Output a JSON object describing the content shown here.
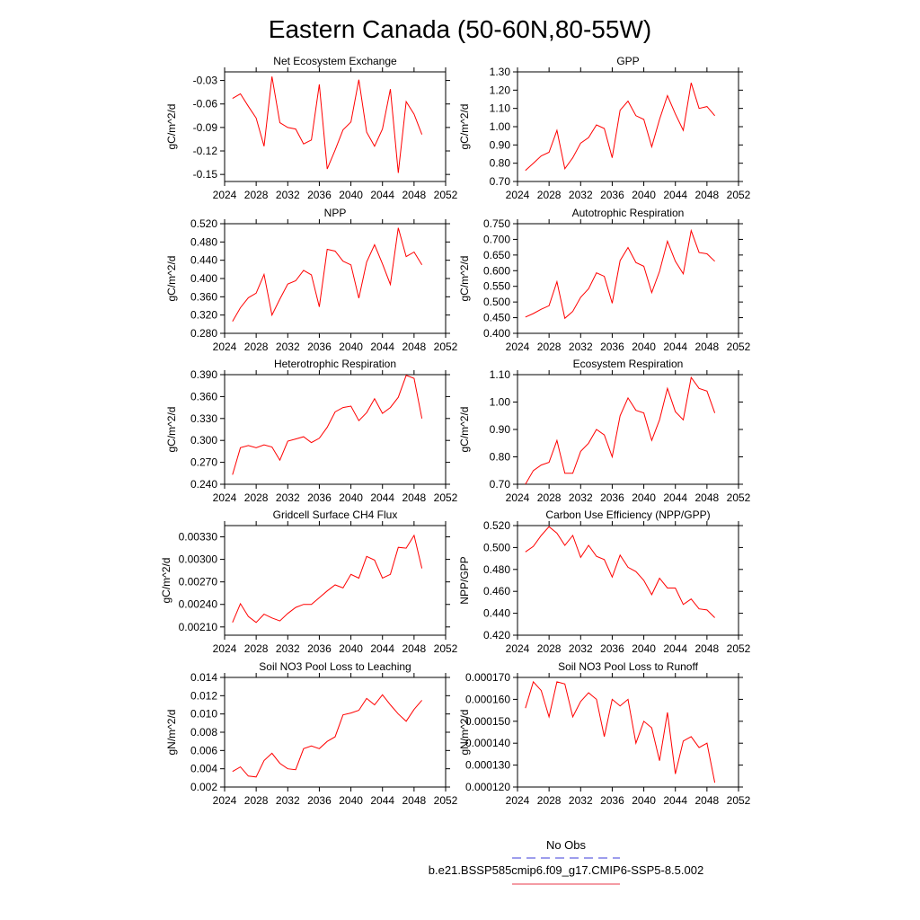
{
  "figure": {
    "title": "Eastern Canada (50-60N,80-55W)",
    "legend": {
      "obs_label": "No Obs",
      "obs_color": "#3b3bd9",
      "model_label": "b.e21.BSSP585cmip6.f09_g17.CMIP6-SSP5-8.5.002",
      "model_color": "#e8394a"
    }
  },
  "chart_data": [
    {
      "type": "line",
      "title": "Net Ecosystem Exchange",
      "ylabel": "gC/m^2/d",
      "xlim": [
        2024,
        2052
      ],
      "xticks": [
        2024,
        2028,
        2032,
        2036,
        2040,
        2044,
        2048,
        2052
      ],
      "xtick_labels": [
        "2024",
        "2028",
        "2032",
        "2036",
        "2040",
        "2044",
        "2048",
        "2052"
      ],
      "ylim": [
        -0.159,
        -0.019
      ],
      "yticks": [
        -0.15,
        -0.12,
        -0.09,
        -0.06,
        -0.03
      ],
      "ytick_labels": [
        "-0.15",
        "-0.12",
        "-0.09",
        "-0.06",
        "-0.03"
      ],
      "line_color": "#ff0000",
      "series": [
        {
          "x": [
            2025,
            2026,
            2027,
            2028,
            2029,
            2030,
            2031,
            2032,
            2033,
            2034,
            2035,
            2036,
            2037,
            2038,
            2039,
            2040,
            2041,
            2042,
            2043,
            2044,
            2045,
            2046,
            2047,
            2048,
            2049
          ],
          "y": [
            -0.053,
            -0.047,
            -0.063,
            -0.078,
            -0.114,
            -0.025,
            -0.084,
            -0.09,
            -0.092,
            -0.111,
            -0.106,
            -0.035,
            -0.143,
            -0.119,
            -0.093,
            -0.083,
            -0.029,
            -0.096,
            -0.114,
            -0.092,
            -0.041,
            -0.148,
            -0.057,
            -0.073,
            -0.099
          ]
        }
      ]
    },
    {
      "type": "line",
      "title": "GPP",
      "ylabel": "gC/m^2/d",
      "xlim": [
        2024,
        2052
      ],
      "xticks": [
        2024,
        2028,
        2032,
        2036,
        2040,
        2044,
        2048,
        2052
      ],
      "xtick_labels": [
        "2024",
        "2028",
        "2032",
        "2036",
        "2040",
        "2044",
        "2048",
        "2052"
      ],
      "ylim": [
        0.7,
        1.3
      ],
      "yticks": [
        0.7,
        0.8,
        0.9,
        1.0,
        1.1,
        1.2,
        1.3
      ],
      "ytick_labels": [
        "0.70",
        "0.80",
        "0.90",
        "1.00",
        "1.10",
        "1.20",
        "1.30"
      ],
      "line_color": "#ff0000",
      "series": [
        {
          "x": [
            2025,
            2026,
            2027,
            2028,
            2029,
            2030,
            2031,
            2032,
            2033,
            2034,
            2035,
            2036,
            2037,
            2038,
            2039,
            2040,
            2041,
            2042,
            2043,
            2044,
            2045,
            2046,
            2047,
            2048,
            2049
          ],
          "y": [
            0.76,
            0.8,
            0.84,
            0.86,
            0.98,
            0.77,
            0.83,
            0.91,
            0.94,
            1.01,
            0.99,
            0.83,
            1.09,
            1.14,
            1.06,
            1.04,
            0.89,
            1.04,
            1.17,
            1.07,
            0.98,
            1.24,
            1.1,
            1.11,
            1.06
          ]
        }
      ]
    },
    {
      "type": "line",
      "title": "NPP",
      "ylabel": "gC/m^2/d",
      "xlim": [
        2024,
        2052
      ],
      "xticks": [
        2024,
        2028,
        2032,
        2036,
        2040,
        2044,
        2048,
        2052
      ],
      "xtick_labels": [
        "2024",
        "2028",
        "2032",
        "2036",
        "2040",
        "2044",
        "2048",
        "2052"
      ],
      "ylim": [
        0.28,
        0.52
      ],
      "yticks": [
        0.28,
        0.32,
        0.36,
        0.4,
        0.44,
        0.48,
        0.52
      ],
      "ytick_labels": [
        "0.280",
        "0.320",
        "0.360",
        "0.400",
        "0.440",
        "0.480",
        "0.520"
      ],
      "line_color": "#ff0000",
      "series": [
        {
          "x": [
            2025,
            2026,
            2027,
            2028,
            2029,
            2030,
            2031,
            2032,
            2033,
            2034,
            2035,
            2036,
            2037,
            2038,
            2039,
            2040,
            2041,
            2042,
            2043,
            2044,
            2045,
            2046,
            2047,
            2048,
            2049
          ],
          "y": [
            0.306,
            0.336,
            0.358,
            0.368,
            0.409,
            0.32,
            0.355,
            0.388,
            0.395,
            0.418,
            0.408,
            0.338,
            0.464,
            0.46,
            0.438,
            0.43,
            0.357,
            0.436,
            0.474,
            0.432,
            0.387,
            0.511,
            0.448,
            0.458,
            0.43
          ]
        }
      ]
    },
    {
      "type": "line",
      "title": "Autotrophic Respiration",
      "ylabel": "gC/m^2/d",
      "xlim": [
        2024,
        2052
      ],
      "xticks": [
        2024,
        2028,
        2032,
        2036,
        2040,
        2044,
        2048,
        2052
      ],
      "xtick_labels": [
        "2024",
        "2028",
        "2032",
        "2036",
        "2040",
        "2044",
        "2048",
        "2052"
      ],
      "ylim": [
        0.4,
        0.75
      ],
      "yticks": [
        0.4,
        0.45,
        0.5,
        0.55,
        0.6,
        0.65,
        0.7,
        0.75
      ],
      "ytick_labels": [
        "0.400",
        "0.450",
        "0.500",
        "0.550",
        "0.600",
        "0.650",
        "0.700",
        "0.750"
      ],
      "line_color": "#ff0000",
      "series": [
        {
          "x": [
            2025,
            2026,
            2027,
            2028,
            2029,
            2030,
            2031,
            2032,
            2033,
            2034,
            2035,
            2036,
            2037,
            2038,
            2039,
            2040,
            2041,
            2042,
            2043,
            2044,
            2045,
            2046,
            2047,
            2048,
            2049
          ],
          "y": [
            0.452,
            0.463,
            0.477,
            0.488,
            0.565,
            0.448,
            0.47,
            0.515,
            0.542,
            0.593,
            0.582,
            0.496,
            0.632,
            0.674,
            0.626,
            0.614,
            0.53,
            0.598,
            0.694,
            0.63,
            0.59,
            0.728,
            0.658,
            0.654,
            0.63
          ]
        }
      ]
    },
    {
      "type": "line",
      "title": "Heterotrophic Respiration",
      "ylabel": "gC/m^2/d",
      "xlim": [
        2024,
        2052
      ],
      "xticks": [
        2024,
        2028,
        2032,
        2036,
        2040,
        2044,
        2048,
        2052
      ],
      "xtick_labels": [
        "2024",
        "2028",
        "2032",
        "2036",
        "2040",
        "2044",
        "2048",
        "2052"
      ],
      "ylim": [
        0.24,
        0.39
      ],
      "yticks": [
        0.24,
        0.27,
        0.3,
        0.33,
        0.36,
        0.39
      ],
      "ytick_labels": [
        "0.240",
        "0.270",
        "0.300",
        "0.330",
        "0.360",
        "0.390"
      ],
      "line_color": "#ff0000",
      "series": [
        {
          "x": [
            2025,
            2026,
            2027,
            2028,
            2029,
            2030,
            2031,
            2032,
            2033,
            2034,
            2035,
            2036,
            2037,
            2038,
            2039,
            2040,
            2041,
            2042,
            2043,
            2044,
            2045,
            2046,
            2047,
            2048,
            2049
          ],
          "y": [
            0.253,
            0.29,
            0.293,
            0.29,
            0.294,
            0.291,
            0.273,
            0.299,
            0.302,
            0.305,
            0.297,
            0.303,
            0.318,
            0.339,
            0.345,
            0.347,
            0.327,
            0.338,
            0.357,
            0.337,
            0.345,
            0.359,
            0.389,
            0.385,
            0.33
          ]
        }
      ]
    },
    {
      "type": "line",
      "title": "Ecosystem Respiration",
      "ylabel": "gC/m^2/d",
      "xlim": [
        2024,
        2052
      ],
      "xticks": [
        2024,
        2028,
        2032,
        2036,
        2040,
        2044,
        2048,
        2052
      ],
      "xtick_labels": [
        "2024",
        "2028",
        "2032",
        "2036",
        "2040",
        "2044",
        "2048",
        "2052"
      ],
      "ylim": [
        0.7,
        1.1
      ],
      "yticks": [
        0.7,
        0.8,
        0.9,
        1.0,
        1.1
      ],
      "ytick_labels": [
        "0.70",
        "0.80",
        "0.90",
        "1.00",
        "1.10"
      ],
      "line_color": "#ff0000",
      "series": [
        {
          "x": [
            2025,
            2026,
            2027,
            2028,
            2029,
            2030,
            2031,
            2032,
            2033,
            2034,
            2035,
            2036,
            2037,
            2038,
            2039,
            2040,
            2041,
            2042,
            2043,
            2044,
            2045,
            2046,
            2047,
            2048,
            2049
          ],
          "y": [
            0.7,
            0.75,
            0.77,
            0.78,
            0.86,
            0.74,
            0.74,
            0.82,
            0.85,
            0.9,
            0.88,
            0.8,
            0.95,
            1.015,
            0.97,
            0.96,
            0.86,
            0.935,
            1.05,
            0.965,
            0.935,
            1.09,
            1.05,
            1.04,
            0.96
          ]
        }
      ]
    },
    {
      "type": "line",
      "title": "Gridcell Surface CH4 Flux",
      "ylabel": "gC/m^2/d",
      "xlim": [
        2024,
        2052
      ],
      "xticks": [
        2024,
        2028,
        2032,
        2036,
        2040,
        2044,
        2048,
        2052
      ],
      "xtick_labels": [
        "2024",
        "2028",
        "2032",
        "2036",
        "2040",
        "2044",
        "2048",
        "2052"
      ],
      "ylim": [
        0.00199,
        0.00345
      ],
      "yticks": [
        0.0021,
        0.0024,
        0.0027,
        0.003,
        0.0033
      ],
      "ytick_labels": [
        "0.00210",
        "0.00240",
        "0.00270",
        "0.00300",
        "0.00330"
      ],
      "line_color": "#ff0000",
      "series": [
        {
          "x": [
            2025,
            2026,
            2027,
            2028,
            2029,
            2030,
            2031,
            2032,
            2033,
            2034,
            2035,
            2036,
            2037,
            2038,
            2039,
            2040,
            2041,
            2042,
            2043,
            2044,
            2045,
            2046,
            2047,
            2048,
            2049
          ],
          "y": [
            0.00216,
            0.00241,
            0.00224,
            0.00216,
            0.00227,
            0.00222,
            0.00218,
            0.00228,
            0.00236,
            0.0024,
            0.0024,
            0.00249,
            0.00258,
            0.00266,
            0.00262,
            0.0028,
            0.00275,
            0.00304,
            0.00299,
            0.00275,
            0.0028,
            0.00316,
            0.00315,
            0.00332,
            0.00288
          ]
        }
      ]
    },
    {
      "type": "line",
      "title": "Carbon Use Efficiency (NPP/GPP)",
      "ylabel": "NPP/GPP",
      "xlim": [
        2024,
        2052
      ],
      "xticks": [
        2024,
        2028,
        2032,
        2036,
        2040,
        2044,
        2048,
        2052
      ],
      "xtick_labels": [
        "2024",
        "2028",
        "2032",
        "2036",
        "2040",
        "2044",
        "2048",
        "2052"
      ],
      "ylim": [
        0.42,
        0.52
      ],
      "yticks": [
        0.42,
        0.44,
        0.46,
        0.48,
        0.5,
        0.52
      ],
      "ytick_labels": [
        "0.420",
        "0.440",
        "0.460",
        "0.480",
        "0.500",
        "0.520"
      ],
      "line_color": "#ff0000",
      "series": [
        {
          "x": [
            2025,
            2026,
            2027,
            2028,
            2029,
            2030,
            2031,
            2032,
            2033,
            2034,
            2035,
            2036,
            2037,
            2038,
            2039,
            2040,
            2041,
            2042,
            2043,
            2044,
            2045,
            2046,
            2047,
            2048,
            2049
          ],
          "y": [
            0.496,
            0.501,
            0.511,
            0.519,
            0.513,
            0.502,
            0.511,
            0.491,
            0.502,
            0.492,
            0.489,
            0.473,
            0.493,
            0.482,
            0.478,
            0.47,
            0.457,
            0.472,
            0.463,
            0.463,
            0.448,
            0.453,
            0.444,
            0.443,
            0.436
          ]
        }
      ]
    },
    {
      "type": "line",
      "title": "Soil NO3 Pool Loss to Leaching",
      "ylabel": "gN/m^2/d",
      "xlim": [
        2024,
        2052
      ],
      "xticks": [
        2024,
        2028,
        2032,
        2036,
        2040,
        2044,
        2048,
        2052
      ],
      "xtick_labels": [
        "2024",
        "2028",
        "2032",
        "2036",
        "2040",
        "2044",
        "2048",
        "2052"
      ],
      "ylim": [
        0.002,
        0.014
      ],
      "yticks": [
        0.002,
        0.004,
        0.006,
        0.008,
        0.01,
        0.012,
        0.014
      ],
      "ytick_labels": [
        "0.002",
        "0.004",
        "0.006",
        "0.008",
        "0.010",
        "0.012",
        "0.014"
      ],
      "line_color": "#ff0000",
      "series": [
        {
          "x": [
            2025,
            2026,
            2027,
            2028,
            2029,
            2030,
            2031,
            2032,
            2033,
            2034,
            2035,
            2036,
            2037,
            2038,
            2039,
            2040,
            2041,
            2042,
            2043,
            2044,
            2045,
            2046,
            2047,
            2048,
            2049
          ],
          "y": [
            0.0037,
            0.0042,
            0.0032,
            0.0031,
            0.0049,
            0.0057,
            0.0046,
            0.004,
            0.0039,
            0.0062,
            0.0065,
            0.0062,
            0.007,
            0.0075,
            0.0099,
            0.0101,
            0.0104,
            0.0117,
            0.011,
            0.0121,
            0.011,
            0.01,
            0.0092,
            0.0105,
            0.0115
          ]
        }
      ]
    },
    {
      "type": "line",
      "title": "Soil NO3 Pool Loss to Runoff",
      "ylabel": "gN/m^2/d",
      "xlim": [
        2024,
        2052
      ],
      "xticks": [
        2024,
        2028,
        2032,
        2036,
        2040,
        2044,
        2048,
        2052
      ],
      "xtick_labels": [
        "2024",
        "2028",
        "2032",
        "2036",
        "2040",
        "2044",
        "2048",
        "2052"
      ],
      "ylim": [
        0.00012,
        0.00017
      ],
      "yticks": [
        0.00012,
        0.00013,
        0.00014,
        0.00015,
        0.00016,
        0.00017
      ],
      "ytick_labels": [
        "0.000120",
        "0.000130",
        "0.000140",
        "0.000150",
        "0.000160",
        "0.000170"
      ],
      "line_color": "#ff0000",
      "series": [
        {
          "x": [
            2025,
            2026,
            2027,
            2028,
            2029,
            2030,
            2031,
            2032,
            2033,
            2034,
            2035,
            2036,
            2037,
            2038,
            2039,
            2040,
            2041,
            2042,
            2043,
            2044,
            2045,
            2046,
            2047,
            2048,
            2049
          ],
          "y": [
            0.000156,
            0.000168,
            0.000164,
            0.000152,
            0.000168,
            0.000167,
            0.000152,
            0.000159,
            0.000163,
            0.00016,
            0.000143,
            0.00016,
            0.000157,
            0.00016,
            0.00014,
            0.00015,
            0.000147,
            0.000132,
            0.000154,
            0.000126,
            0.000141,
            0.000143,
            0.000138,
            0.00014,
            0.000122
          ]
        }
      ]
    }
  ]
}
